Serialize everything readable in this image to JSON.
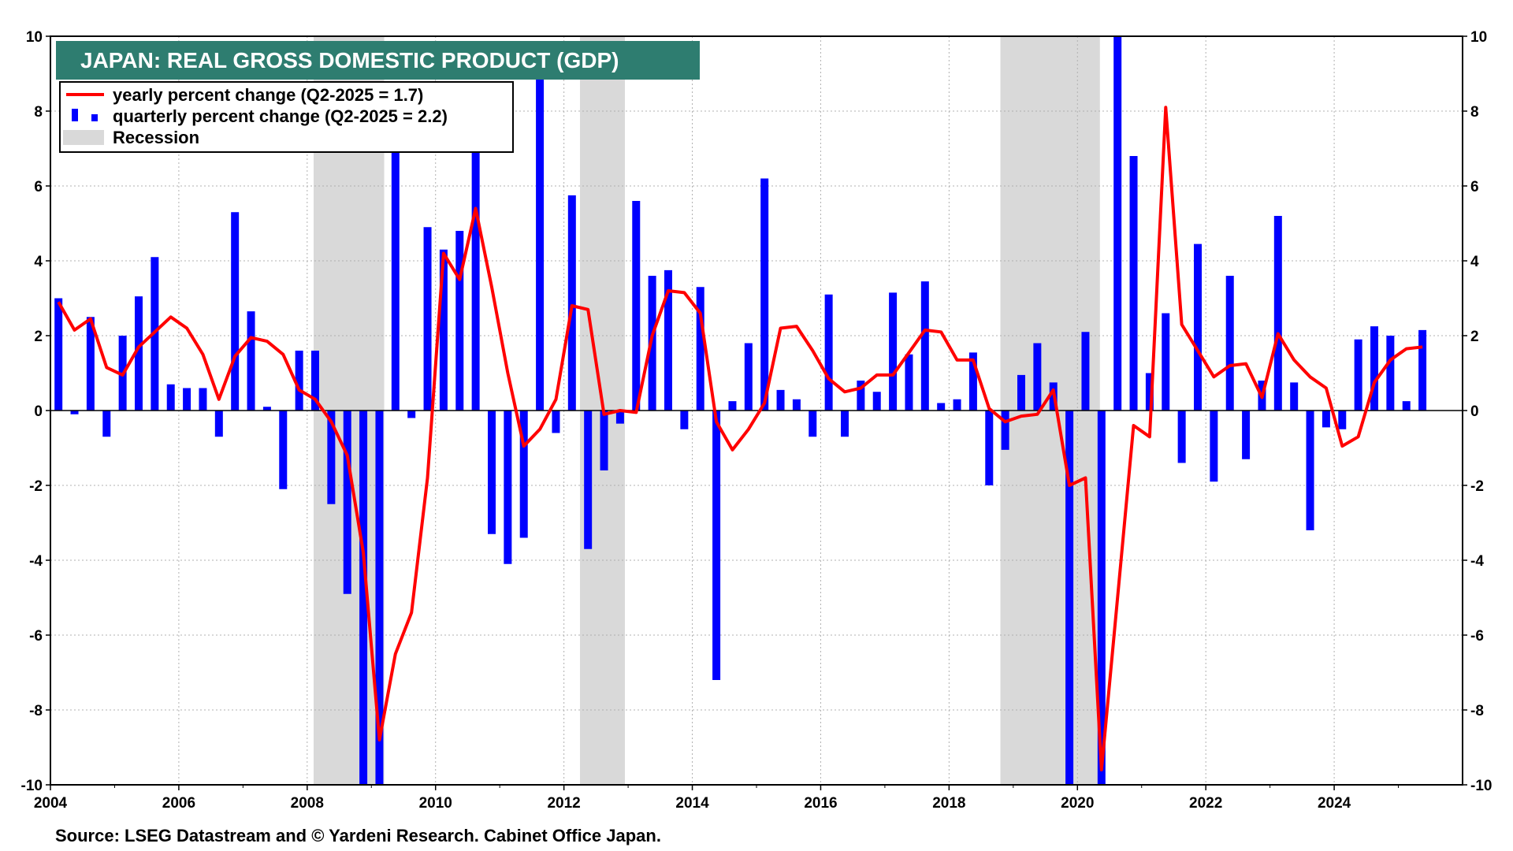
{
  "colors": {
    "title_bg": "#2e7d70",
    "yearly_line": "#ff0000",
    "quarterly_bar": "#0000ff",
    "recession": "#d9d9d9",
    "grid": "#b0b0b0"
  },
  "source": "Source: LSEG Datastream and © Yardeni Research. Cabinet Office Japan.",
  "chart_data": {
    "type": "bar",
    "title": "JAPAN: REAL GROSS DOMESTIC PRODUCT (GDP)",
    "xlim": [
      2004.0,
      2026.0
    ],
    "ylim": [
      -10,
      10
    ],
    "grid": true,
    "legend_position": "top-left",
    "x_ticks": [
      "2004",
      "2006",
      "2008",
      "2010",
      "2012",
      "2014",
      "2016",
      "2018",
      "2020",
      "2022",
      "2024"
    ],
    "y_ticks": [
      "10",
      "8",
      "6",
      "4",
      "2",
      "0",
      "-2",
      "-4",
      "-6",
      "-8",
      "-10"
    ],
    "legend": [
      {
        "label": "yearly percent change (Q2-2025 = 1.7)",
        "kind": "line"
      },
      {
        "label": "quarterly percent change (Q2-2025 = 2.2)",
        "kind": "bar"
      },
      {
        "label": "Recession",
        "kind": "area"
      }
    ],
    "recessions": [
      [
        2008.1,
        2009.2
      ],
      [
        2012.25,
        2012.95
      ],
      [
        2018.8,
        2020.35
      ]
    ],
    "quarters": [
      {
        "x": 2004.125,
        "v": 3.0
      },
      {
        "x": 2004.375,
        "v": -0.1
      },
      {
        "x": 2004.625,
        "v": 2.5
      },
      {
        "x": 2004.875,
        "v": -0.7
      },
      {
        "x": 2005.125,
        "v": 2.0
      },
      {
        "x": 2005.375,
        "v": 3.05
      },
      {
        "x": 2005.625,
        "v": 4.1
      },
      {
        "x": 2005.875,
        "v": 0.7
      },
      {
        "x": 2006.125,
        "v": 0.6
      },
      {
        "x": 2006.375,
        "v": 0.6
      },
      {
        "x": 2006.625,
        "v": -0.7
      },
      {
        "x": 2006.875,
        "v": 5.3
      },
      {
        "x": 2007.125,
        "v": 2.65
      },
      {
        "x": 2007.375,
        "v": 0.1
      },
      {
        "x": 2007.625,
        "v": -2.1
      },
      {
        "x": 2007.875,
        "v": 1.6
      },
      {
        "x": 2008.125,
        "v": 1.6
      },
      {
        "x": 2008.375,
        "v": -2.5
      },
      {
        "x": 2008.625,
        "v": -4.9
      },
      {
        "x": 2008.875,
        "v": -10.0
      },
      {
        "x": 2009.125,
        "v": -10.0
      },
      {
        "x": 2009.375,
        "v": 7.0
      },
      {
        "x": 2009.625,
        "v": -0.2
      },
      {
        "x": 2009.875,
        "v": 4.9
      },
      {
        "x": 2010.125,
        "v": 4.3
      },
      {
        "x": 2010.375,
        "v": 4.8
      },
      {
        "x": 2010.625,
        "v": 7.0
      },
      {
        "x": 2010.875,
        "v": -3.3
      },
      {
        "x": 2011.125,
        "v": -4.1
      },
      {
        "x": 2011.375,
        "v": -3.4
      },
      {
        "x": 2011.625,
        "v": 9.0
      },
      {
        "x": 2011.875,
        "v": -0.6
      },
      {
        "x": 2012.125,
        "v": 5.75
      },
      {
        "x": 2012.375,
        "v": -3.7
      },
      {
        "x": 2012.625,
        "v": -1.6
      },
      {
        "x": 2012.875,
        "v": -0.35
      },
      {
        "x": 2013.125,
        "v": 5.6
      },
      {
        "x": 2013.375,
        "v": 3.6
      },
      {
        "x": 2013.625,
        "v": 3.75
      },
      {
        "x": 2013.875,
        "v": -0.5
      },
      {
        "x": 2014.125,
        "v": 3.3
      },
      {
        "x": 2014.375,
        "v": -7.2
      },
      {
        "x": 2014.625,
        "v": 0.25
      },
      {
        "x": 2014.875,
        "v": 1.8
      },
      {
        "x": 2015.125,
        "v": 6.2
      },
      {
        "x": 2015.375,
        "v": 0.55
      },
      {
        "x": 2015.625,
        "v": 0.3
      },
      {
        "x": 2015.875,
        "v": -0.7
      },
      {
        "x": 2016.125,
        "v": 3.1
      },
      {
        "x": 2016.375,
        "v": -0.7
      },
      {
        "x": 2016.625,
        "v": 0.8
      },
      {
        "x": 2016.875,
        "v": 0.5
      },
      {
        "x": 2017.125,
        "v": 3.15
      },
      {
        "x": 2017.375,
        "v": 1.5
      },
      {
        "x": 2017.625,
        "v": 3.45
      },
      {
        "x": 2017.875,
        "v": 0.2
      },
      {
        "x": 2018.125,
        "v": 0.3
      },
      {
        "x": 2018.375,
        "v": 1.55
      },
      {
        "x": 2018.625,
        "v": -2.0
      },
      {
        "x": 2018.875,
        "v": -1.05
      },
      {
        "x": 2019.125,
        "v": 0.95
      },
      {
        "x": 2019.375,
        "v": 1.8
      },
      {
        "x": 2019.625,
        "v": 0.75
      },
      {
        "x": 2019.875,
        "v": -10.0
      },
      {
        "x": 2020.125,
        "v": 2.1
      },
      {
        "x": 2020.375,
        "v": -10.0
      },
      {
        "x": 2020.625,
        "v": 10.0
      },
      {
        "x": 2020.875,
        "v": 6.8
      },
      {
        "x": 2021.125,
        "v": 1.0
      },
      {
        "x": 2021.375,
        "v": 2.6
      },
      {
        "x": 2021.625,
        "v": -1.4
      },
      {
        "x": 2021.875,
        "v": 4.45
      },
      {
        "x": 2022.125,
        "v": -1.9
      },
      {
        "x": 2022.375,
        "v": 3.6
      },
      {
        "x": 2022.625,
        "v": -1.3
      },
      {
        "x": 2022.875,
        "v": 0.8
      },
      {
        "x": 2023.125,
        "v": 5.2
      },
      {
        "x": 2023.375,
        "v": 0.75
      },
      {
        "x": 2023.625,
        "v": -3.2
      },
      {
        "x": 2023.875,
        "v": -0.45
      },
      {
        "x": 2024.125,
        "v": -0.5
      },
      {
        "x": 2024.375,
        "v": 1.9
      },
      {
        "x": 2024.625,
        "v": 2.25
      },
      {
        "x": 2024.875,
        "v": 2.0
      },
      {
        "x": 2025.125,
        "v": 0.25
      },
      {
        "x": 2025.375,
        "v": 2.15
      }
    ],
    "yearly": [
      {
        "x": 2004.125,
        "v": 2.9
      },
      {
        "x": 2004.375,
        "v": 2.15
      },
      {
        "x": 2004.625,
        "v": 2.45
      },
      {
        "x": 2004.875,
        "v": 1.15
      },
      {
        "x": 2005.125,
        "v": 0.95
      },
      {
        "x": 2005.375,
        "v": 1.7
      },
      {
        "x": 2005.625,
        "v": 2.1
      },
      {
        "x": 2005.875,
        "v": 2.5
      },
      {
        "x": 2006.125,
        "v": 2.2
      },
      {
        "x": 2006.375,
        "v": 1.5
      },
      {
        "x": 2006.625,
        "v": 0.3
      },
      {
        "x": 2006.875,
        "v": 1.45
      },
      {
        "x": 2007.125,
        "v": 1.95
      },
      {
        "x": 2007.375,
        "v": 1.85
      },
      {
        "x": 2007.625,
        "v": 1.5
      },
      {
        "x": 2007.875,
        "v": 0.55
      },
      {
        "x": 2008.125,
        "v": 0.3
      },
      {
        "x": 2008.375,
        "v": -0.3
      },
      {
        "x": 2008.625,
        "v": -1.2
      },
      {
        "x": 2008.875,
        "v": -3.8
      },
      {
        "x": 2009.125,
        "v": -8.8
      },
      {
        "x": 2009.375,
        "v": -6.5
      },
      {
        "x": 2009.625,
        "v": -5.4
      },
      {
        "x": 2009.875,
        "v": -1.8
      },
      {
        "x": 2010.125,
        "v": 4.2
      },
      {
        "x": 2010.375,
        "v": 3.5
      },
      {
        "x": 2010.625,
        "v": 5.4
      },
      {
        "x": 2010.875,
        "v": 3.3
      },
      {
        "x": 2011.125,
        "v": 1.0
      },
      {
        "x": 2011.375,
        "v": -0.95
      },
      {
        "x": 2011.625,
        "v": -0.5
      },
      {
        "x": 2011.875,
        "v": 0.3
      },
      {
        "x": 2012.125,
        "v": 2.8
      },
      {
        "x": 2012.375,
        "v": 2.7
      },
      {
        "x": 2012.625,
        "v": -0.1
      },
      {
        "x": 2012.875,
        "v": 0.0
      },
      {
        "x": 2013.125,
        "v": -0.05
      },
      {
        "x": 2013.375,
        "v": 2.0
      },
      {
        "x": 2013.625,
        "v": 3.2
      },
      {
        "x": 2013.875,
        "v": 3.15
      },
      {
        "x": 2014.125,
        "v": 2.6
      },
      {
        "x": 2014.375,
        "v": -0.3
      },
      {
        "x": 2014.625,
        "v": -1.05
      },
      {
        "x": 2014.875,
        "v": -0.5
      },
      {
        "x": 2015.125,
        "v": 0.2
      },
      {
        "x": 2015.375,
        "v": 2.2
      },
      {
        "x": 2015.625,
        "v": 2.25
      },
      {
        "x": 2015.875,
        "v": 1.6
      },
      {
        "x": 2016.125,
        "v": 0.85
      },
      {
        "x": 2016.375,
        "v": 0.5
      },
      {
        "x": 2016.625,
        "v": 0.6
      },
      {
        "x": 2016.875,
        "v": 0.95
      },
      {
        "x": 2017.125,
        "v": 0.95
      },
      {
        "x": 2017.375,
        "v": 1.55
      },
      {
        "x": 2017.625,
        "v": 2.15
      },
      {
        "x": 2017.875,
        "v": 2.1
      },
      {
        "x": 2018.125,
        "v": 1.35
      },
      {
        "x": 2018.375,
        "v": 1.35
      },
      {
        "x": 2018.625,
        "v": 0.05
      },
      {
        "x": 2018.875,
        "v": -0.3
      },
      {
        "x": 2019.125,
        "v": -0.15
      },
      {
        "x": 2019.375,
        "v": -0.1
      },
      {
        "x": 2019.625,
        "v": 0.55
      },
      {
        "x": 2019.875,
        "v": -2.0
      },
      {
        "x": 2020.125,
        "v": -1.8
      },
      {
        "x": 2020.375,
        "v": -9.6
      },
      {
        "x": 2020.625,
        "v": -5.0
      },
      {
        "x": 2020.875,
        "v": -0.4
      },
      {
        "x": 2021.125,
        "v": -0.7
      },
      {
        "x": 2021.375,
        "v": 8.1
      },
      {
        "x": 2021.625,
        "v": 2.3
      },
      {
        "x": 2021.875,
        "v": 1.6
      },
      {
        "x": 2022.125,
        "v": 0.9
      },
      {
        "x": 2022.375,
        "v": 1.2
      },
      {
        "x": 2022.625,
        "v": 1.25
      },
      {
        "x": 2022.875,
        "v": 0.35
      },
      {
        "x": 2023.125,
        "v": 2.05
      },
      {
        "x": 2023.375,
        "v": 1.35
      },
      {
        "x": 2023.625,
        "v": 0.9
      },
      {
        "x": 2023.875,
        "v": 0.6
      },
      {
        "x": 2024.125,
        "v": -0.95
      },
      {
        "x": 2024.375,
        "v": -0.7
      },
      {
        "x": 2024.625,
        "v": 0.75
      },
      {
        "x": 2024.875,
        "v": 1.35
      },
      {
        "x": 2025.125,
        "v": 1.65
      },
      {
        "x": 2025.375,
        "v": 1.7
      }
    ]
  }
}
